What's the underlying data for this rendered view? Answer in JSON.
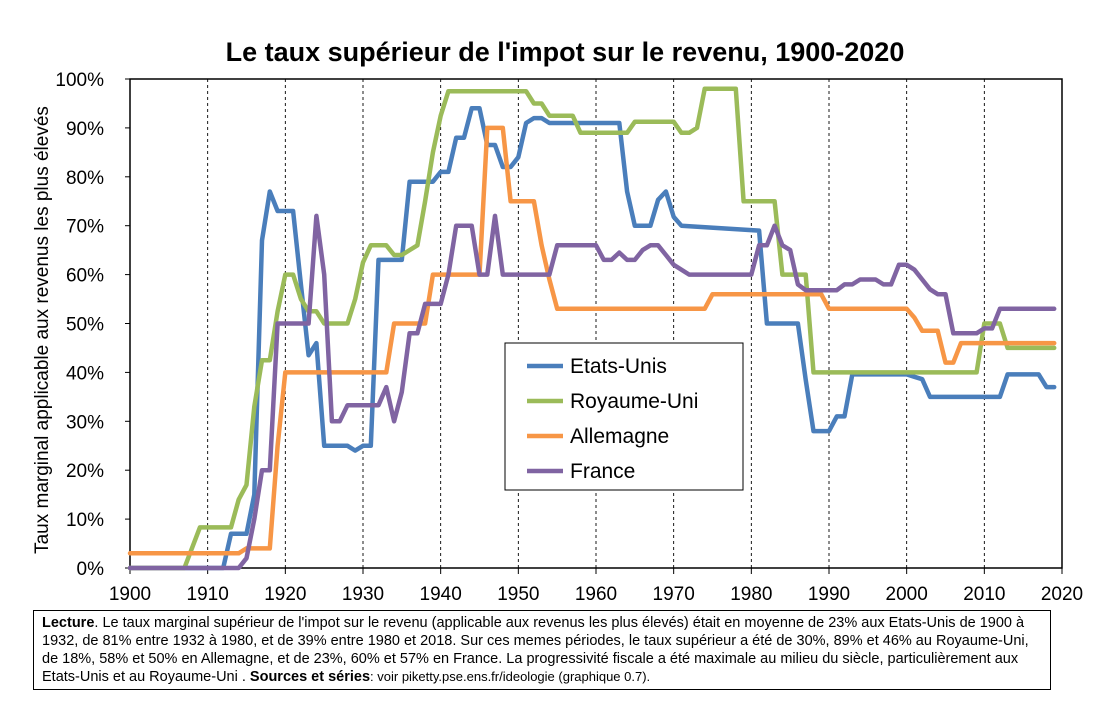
{
  "chart_data": {
    "type": "line",
    "title": "Le taux supérieur de l'impot sur le revenu, 1900-2020",
    "xlabel": "",
    "ylabel": "Taux marginal applicable aux revenus les plus élevés",
    "xlim": [
      1900,
      2020
    ],
    "ylim": [
      0,
      1
    ],
    "x_ticks": [
      "1900",
      "1910",
      "1920",
      "1930",
      "1940",
      "1950",
      "1960",
      "1970",
      "1980",
      "1990",
      "2000",
      "2010",
      "2020"
    ],
    "y_ticks": [
      "0%",
      "10%",
      "20%",
      "30%",
      "40%",
      "50%",
      "60%",
      "70%",
      "80%",
      "90%",
      "100%"
    ],
    "grid": "vertical dashed",
    "legend_position": "center",
    "series": [
      {
        "name": "Etats-Unis",
        "color": "#4a7ebb",
        "points": [
          [
            1900,
            0
          ],
          [
            1912,
            0
          ],
          [
            1913,
            0.07
          ],
          [
            1915,
            0.07
          ],
          [
            1916,
            0.15
          ],
          [
            1917,
            0.67
          ],
          [
            1918,
            0.77
          ],
          [
            1919,
            0.73
          ],
          [
            1921,
            0.73
          ],
          [
            1922,
            0.58
          ],
          [
            1923,
            0.435
          ],
          [
            1924,
            0.46
          ],
          [
            1925,
            0.25
          ],
          [
            1928,
            0.25
          ],
          [
            1929,
            0.24
          ],
          [
            1930,
            0.25
          ],
          [
            1931,
            0.25
          ],
          [
            1932,
            0.63
          ],
          [
            1935,
            0.63
          ],
          [
            1936,
            0.79
          ],
          [
            1939,
            0.79
          ],
          [
            1940,
            0.81
          ],
          [
            1941,
            0.81
          ],
          [
            1942,
            0.88
          ],
          [
            1943,
            0.88
          ],
          [
            1944,
            0.94
          ],
          [
            1945,
            0.94
          ],
          [
            1946,
            0.865
          ],
          [
            1947,
            0.865
          ],
          [
            1948,
            0.82
          ],
          [
            1949,
            0.82
          ],
          [
            1950,
            0.84
          ],
          [
            1951,
            0.91
          ],
          [
            1952,
            0.92
          ],
          [
            1953,
            0.92
          ],
          [
            1954,
            0.91
          ],
          [
            1963,
            0.91
          ],
          [
            1964,
            0.77
          ],
          [
            1965,
            0.7
          ],
          [
            1967,
            0.7
          ],
          [
            1968,
            0.753
          ],
          [
            1969,
            0.77
          ],
          [
            1970,
            0.718
          ],
          [
            1971,
            0.7
          ],
          [
            1981,
            0.69
          ],
          [
            1982,
            0.5
          ],
          [
            1986,
            0.5
          ],
          [
            1987,
            0.385
          ],
          [
            1988,
            0.28
          ],
          [
            1990,
            0.28
          ],
          [
            1991,
            0.31
          ],
          [
            1992,
            0.31
          ],
          [
            1993,
            0.396
          ],
          [
            2000,
            0.396
          ],
          [
            2001,
            0.391
          ],
          [
            2002,
            0.386
          ],
          [
            2003,
            0.35
          ],
          [
            2012,
            0.35
          ],
          [
            2013,
            0.396
          ],
          [
            2017,
            0.396
          ],
          [
            2018,
            0.37
          ],
          [
            2019,
            0.37
          ]
        ]
      },
      {
        "name": "Royaume-Uni",
        "color": "#9bbb59",
        "points": [
          [
            1900,
            0
          ],
          [
            1907,
            0
          ],
          [
            1909,
            0.083
          ],
          [
            1913,
            0.083
          ],
          [
            1914,
            0.14
          ],
          [
            1915,
            0.17
          ],
          [
            1916,
            0.33
          ],
          [
            1917,
            0.425
          ],
          [
            1918,
            0.425
          ],
          [
            1919,
            0.525
          ],
          [
            1920,
            0.6
          ],
          [
            1921,
            0.6
          ],
          [
            1922,
            0.55
          ],
          [
            1923,
            0.525
          ],
          [
            1924,
            0.525
          ],
          [
            1925,
            0.5
          ],
          [
            1927,
            0.5
          ],
          [
            1928,
            0.5
          ],
          [
            1929,
            0.55
          ],
          [
            1930,
            0.625
          ],
          [
            1931,
            0.66
          ],
          [
            1933,
            0.66
          ],
          [
            1934,
            0.64
          ],
          [
            1935,
            0.64
          ],
          [
            1936,
            0.65
          ],
          [
            1937,
            0.66
          ],
          [
            1938,
            0.75
          ],
          [
            1939,
            0.85
          ],
          [
            1940,
            0.925
          ],
          [
            1941,
            0.975
          ],
          [
            1951,
            0.975
          ],
          [
            1952,
            0.95
          ],
          [
            1953,
            0.95
          ],
          [
            1954,
            0.925
          ],
          [
            1957,
            0.925
          ],
          [
            1958,
            0.89
          ],
          [
            1964,
            0.89
          ],
          [
            1965,
            0.9125
          ],
          [
            1970,
            0.9125
          ],
          [
            1971,
            0.89
          ],
          [
            1972,
            0.89
          ],
          [
            1973,
            0.9
          ],
          [
            1974,
            0.98
          ],
          [
            1978,
            0.98
          ],
          [
            1979,
            0.75
          ],
          [
            1982,
            0.75
          ],
          [
            1983,
            0.75
          ],
          [
            1984,
            0.6
          ],
          [
            1987,
            0.6
          ],
          [
            1988,
            0.4
          ],
          [
            2009,
            0.4
          ],
          [
            2010,
            0.5
          ],
          [
            2012,
            0.5
          ],
          [
            2013,
            0.45
          ],
          [
            2019,
            0.45
          ]
        ]
      },
      {
        "name": "Allemagne",
        "color": "#f79646",
        "points": [
          [
            1900,
            0.03
          ],
          [
            1913,
            0.03
          ],
          [
            1914,
            0.03
          ],
          [
            1915,
            0.04
          ],
          [
            1918,
            0.04
          ],
          [
            1919,
            0.25
          ],
          [
            1920,
            0.4
          ],
          [
            1931,
            0.4
          ],
          [
            1933,
            0.4
          ],
          [
            1934,
            0.5
          ],
          [
            1936,
            0.5
          ],
          [
            1938,
            0.5
          ],
          [
            1939,
            0.6
          ],
          [
            1945,
            0.6
          ],
          [
            1946,
            0.9
          ],
          [
            1948,
            0.9
          ],
          [
            1949,
            0.75
          ],
          [
            1952,
            0.75
          ],
          [
            1953,
            0.66
          ],
          [
            1954,
            0.59
          ],
          [
            1955,
            0.53
          ],
          [
            1974,
            0.53
          ],
          [
            1975,
            0.56
          ],
          [
            1989,
            0.56
          ],
          [
            1990,
            0.53
          ],
          [
            2000,
            0.53
          ],
          [
            2001,
            0.512
          ],
          [
            2002,
            0.485
          ],
          [
            2004,
            0.485
          ],
          [
            2005,
            0.42
          ],
          [
            2006,
            0.42
          ],
          [
            2007,
            0.46
          ],
          [
            2019,
            0.46
          ]
        ]
      },
      {
        "name": "France",
        "color": "#8064a2",
        "points": [
          [
            1900,
            0
          ],
          [
            1913,
            0
          ],
          [
            1914,
            0
          ],
          [
            1915,
            0.02
          ],
          [
            1916,
            0.1
          ],
          [
            1917,
            0.2
          ],
          [
            1918,
            0.2
          ],
          [
            1919,
            0.5
          ],
          [
            1923,
            0.5
          ],
          [
            1924,
            0.72
          ],
          [
            1925,
            0.6
          ],
          [
            1926,
            0.3
          ],
          [
            1927,
            0.3
          ],
          [
            1928,
            0.333
          ],
          [
            1931,
            0.333
          ],
          [
            1932,
            0.333
          ],
          [
            1933,
            0.37
          ],
          [
            1934,
            0.3
          ],
          [
            1935,
            0.36
          ],
          [
            1936,
            0.48
          ],
          [
            1937,
            0.48
          ],
          [
            1938,
            0.54
          ],
          [
            1940,
            0.54
          ],
          [
            1941,
            0.6
          ],
          [
            1942,
            0.7
          ],
          [
            1944,
            0.7
          ],
          [
            1945,
            0.6
          ],
          [
            1946,
            0.6
          ],
          [
            1947,
            0.72
          ],
          [
            1948,
            0.6
          ],
          [
            1954,
            0.6
          ],
          [
            1955,
            0.66
          ],
          [
            1960,
            0.66
          ],
          [
            1961,
            0.63
          ],
          [
            1962,
            0.63
          ],
          [
            1963,
            0.645
          ],
          [
            1964,
            0.63
          ],
          [
            1965,
            0.63
          ],
          [
            1966,
            0.65
          ],
          [
            1967,
            0.66
          ],
          [
            1968,
            0.66
          ],
          [
            1969,
            0.64
          ],
          [
            1970,
            0.62
          ],
          [
            1972,
            0.6
          ],
          [
            1980,
            0.6
          ],
          [
            1981,
            0.66
          ],
          [
            1982,
            0.66
          ],
          [
            1983,
            0.7
          ],
          [
            1984,
            0.66
          ],
          [
            1985,
            0.65
          ],
          [
            1986,
            0.58
          ],
          [
            1987,
            0.568
          ],
          [
            1991,
            0.568
          ],
          [
            1992,
            0.58
          ],
          [
            1993,
            0.58
          ],
          [
            1994,
            0.59
          ],
          [
            1996,
            0.59
          ],
          [
            1997,
            0.58
          ],
          [
            1998,
            0.58
          ],
          [
            1999,
            0.62
          ],
          [
            2000,
            0.62
          ],
          [
            2001,
            0.61
          ],
          [
            2002,
            0.59
          ],
          [
            2003,
            0.57
          ],
          [
            2004,
            0.56
          ],
          [
            2005,
            0.56
          ],
          [
            2006,
            0.48
          ],
          [
            2009,
            0.48
          ],
          [
            2010,
            0.49
          ],
          [
            2011,
            0.49
          ],
          [
            2012,
            0.53
          ],
          [
            2019,
            0.53
          ]
        ]
      }
    ]
  },
  "note": {
    "label": "Lecture",
    "text": ". Le taux marginal supérieur de l'impot sur le revenu (applicable aux revenus les plus élevés) était en moyenne de 23% aux Etats-Unis de 1900 à 1932, de 81% entre 1932 à 1980, et de 39% entre 1980 et 2018. Sur ces memes périodes, le taux supérieur a été de 30%, 89% et 46% au Royaume-Uni, de 18%, 58% et 50% en Allemagne, et de 23%, 60% et 57% en France. La progressivité fiscale a été maximale au milieu du siècle, particulièrement aux Etats-Unis et au Royaume-Uni . ",
    "sources_label": "Sources et séries",
    "sources_text": ": voir piketty.pse.ens.fr/ideologie (graphique 0.7)."
  }
}
